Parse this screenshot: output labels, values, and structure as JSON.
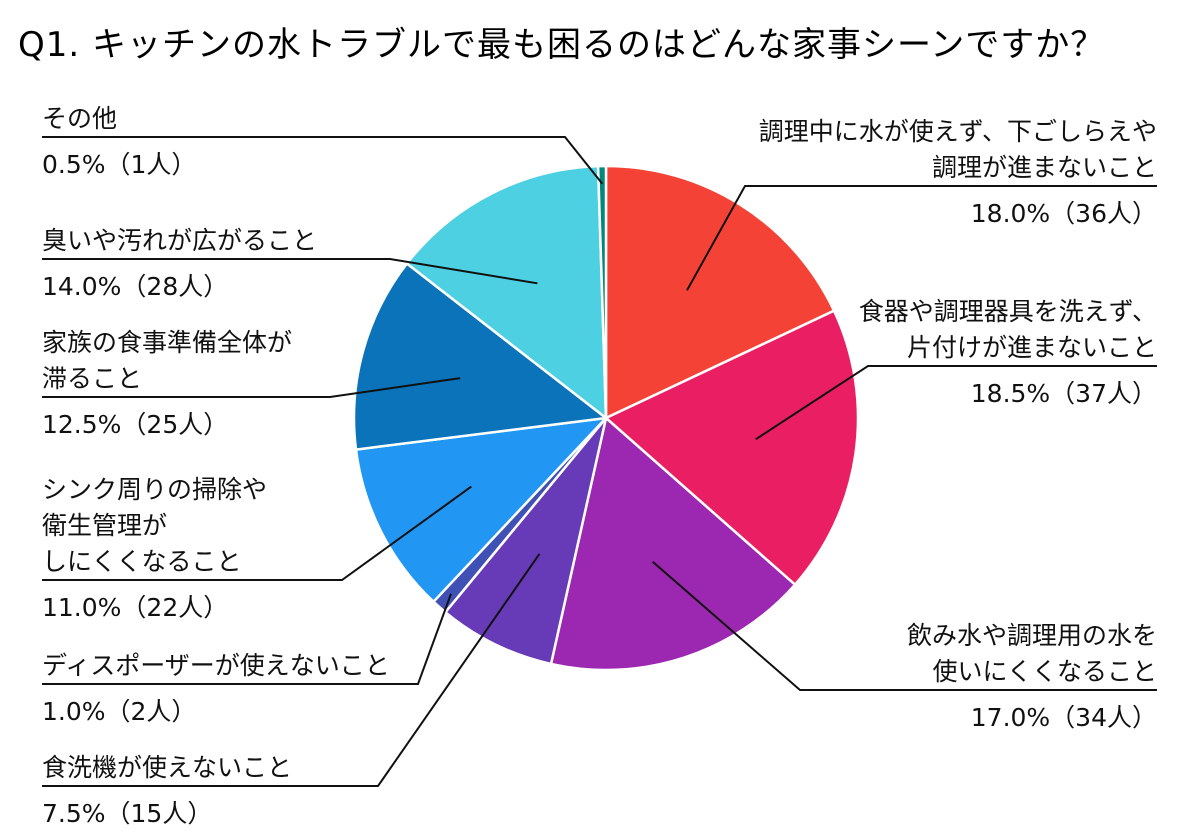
{
  "chart_data": {
    "type": "pie",
    "title": "Q1. キッチンの水トラブルで最も困るのはどんな家事シーンですか？",
    "unit": "%",
    "slices": [
      {
        "label_lines": [
          "調理中に水が使えず、下ごしらえや",
          "調理が進まないこと"
        ],
        "value": 18.0,
        "value_text": "18.0%（36人）",
        "count": 36,
        "color": "#F44336"
      },
      {
        "label_lines": [
          "食器や調理器具を洗えず、",
          "片付けが進まないこと"
        ],
        "value": 18.5,
        "value_text": "18.5%（37人）",
        "count": 37,
        "color": "#E91E63"
      },
      {
        "label_lines": [
          "飲み水や調理用の水を",
          "使いにくくなること"
        ],
        "value": 17.0,
        "value_text": "17.0%（34人）",
        "count": 34,
        "color": "#9C27B0"
      },
      {
        "label_lines": [
          "食洗機が使えないこと"
        ],
        "value": 7.5,
        "value_text": "7.5%（15人）",
        "count": 15,
        "color": "#673AB7"
      },
      {
        "label_lines": [
          "ディスポーザーが使えないこと"
        ],
        "value": 1.0,
        "value_text": "1.0%（2人）",
        "count": 2,
        "color": "#3F51B5"
      },
      {
        "label_lines": [
          "シンク周りの掃除や",
          "衛生管理が",
          "しにくくなること"
        ],
        "value": 11.0,
        "value_text": "11.0%（22人）",
        "count": 22,
        "color": "#2196F3"
      },
      {
        "label_lines": [
          "家族の食事準備全体が",
          "滞ること"
        ],
        "value": 12.5,
        "value_text": "12.5%（25人）",
        "count": 25,
        "color": "#0A73BA"
      },
      {
        "label_lines": [
          "臭いや汚れが広がること"
        ],
        "value": 14.0,
        "value_text": "14.0%（28人）",
        "count": 28,
        "color": "#4DD0E1"
      },
      {
        "label_lines": [
          "その他"
        ],
        "value": 0.5,
        "value_text": "0.5%（1人）",
        "count": 1,
        "color": "#00897B"
      }
    ],
    "legend": "none",
    "start_angle": "12 o'clock",
    "direction": "clockwise",
    "slice_border_color": "#ffffff",
    "leader_line_color": "#111111"
  }
}
